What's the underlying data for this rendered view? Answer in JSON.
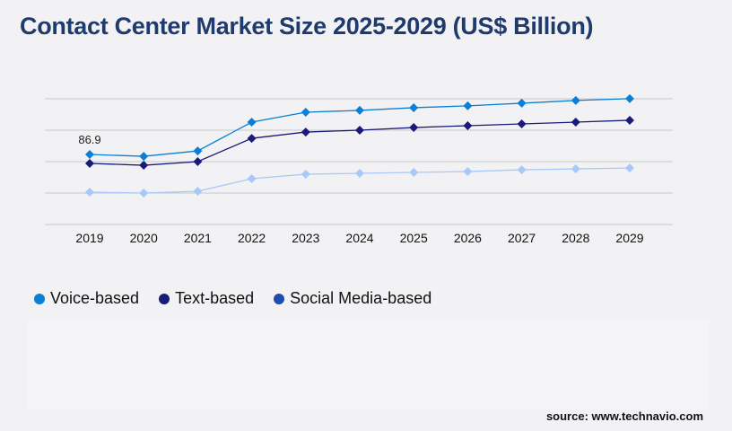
{
  "chart_data": {
    "type": "line",
    "title": "Contact Center Market Size 2025-2029 (US$ Billion)",
    "xlabel": "",
    "ylabel": "",
    "ylim": [
      0,
      156
    ],
    "grid": true,
    "legend_placement": "bottom-left",
    "categories": [
      "2019",
      "2020",
      "2021",
      "2022",
      "2023",
      "2024",
      "2025",
      "2026",
      "2027",
      "2028",
      "2029"
    ],
    "series": [
      {
        "name": "Voice-based",
        "color": "#0a7fd6",
        "legend_color": "#0a7fd6",
        "values": [
          86.9,
          84.6,
          91.3,
          127.0,
          139.3,
          141.6,
          144.9,
          147.2,
          150.5,
          153.9,
          156.1
        ]
      },
      {
        "name": "Text-based",
        "color": "#1a1a7a",
        "legend_color": "#1a1a7a",
        "values": [
          75.8,
          73.5,
          78.0,
          106.9,
          114.7,
          117.0,
          120.3,
          122.6,
          124.8,
          127.0,
          129.3
        ]
      },
      {
        "name": "Social Media-based",
        "color": "#a8c8f8",
        "legend_color": "#1e4db0",
        "values": [
          40.1,
          39.0,
          41.2,
          56.8,
          62.4,
          63.5,
          64.6,
          65.7,
          67.9,
          69.0,
          70.1
        ]
      }
    ],
    "annotations": [
      {
        "series": 0,
        "index": 0,
        "text": "86.9"
      }
    ],
    "gridlines": [
      0,
      39,
      78,
      117,
      156
    ]
  },
  "source": "source: www.technavio.com"
}
